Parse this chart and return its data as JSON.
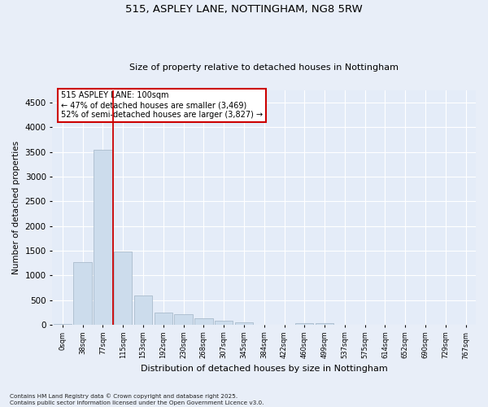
{
  "title_line1": "515, ASPLEY LANE, NOTTINGHAM, NG8 5RW",
  "title_line2": "Size of property relative to detached houses in Nottingham",
  "xlabel": "Distribution of detached houses by size in Nottingham",
  "ylabel": "Number of detached properties",
  "bar_color": "#ccdcec",
  "bar_edge_color": "#aabccc",
  "vline_color": "#cc0000",
  "vline_x": 2.5,
  "annotation_box_text": "515 ASPLEY LANE: 100sqm\n← 47% of detached houses are smaller (3,469)\n52% of semi-detached houses are larger (3,827) →",
  "categories": [
    "0sqm",
    "38sqm",
    "77sqm",
    "115sqm",
    "153sqm",
    "192sqm",
    "230sqm",
    "268sqm",
    "307sqm",
    "345sqm",
    "384sqm",
    "422sqm",
    "460sqm",
    "499sqm",
    "537sqm",
    "575sqm",
    "614sqm",
    "652sqm",
    "690sqm",
    "729sqm",
    "767sqm"
  ],
  "values": [
    20,
    1270,
    3550,
    1490,
    590,
    240,
    220,
    130,
    80,
    55,
    0,
    0,
    30,
    30,
    0,
    0,
    0,
    0,
    0,
    0,
    0
  ],
  "ylim": [
    0,
    4750
  ],
  "yticks": [
    0,
    500,
    1000,
    1500,
    2000,
    2500,
    3000,
    3500,
    4000,
    4500
  ],
  "footnote": "Contains HM Land Registry data © Crown copyright and database right 2025.\nContains public sector information licensed under the Open Government Licence v3.0.",
  "bg_color": "#e8eef8",
  "plot_bg_color": "#e4ecf8"
}
